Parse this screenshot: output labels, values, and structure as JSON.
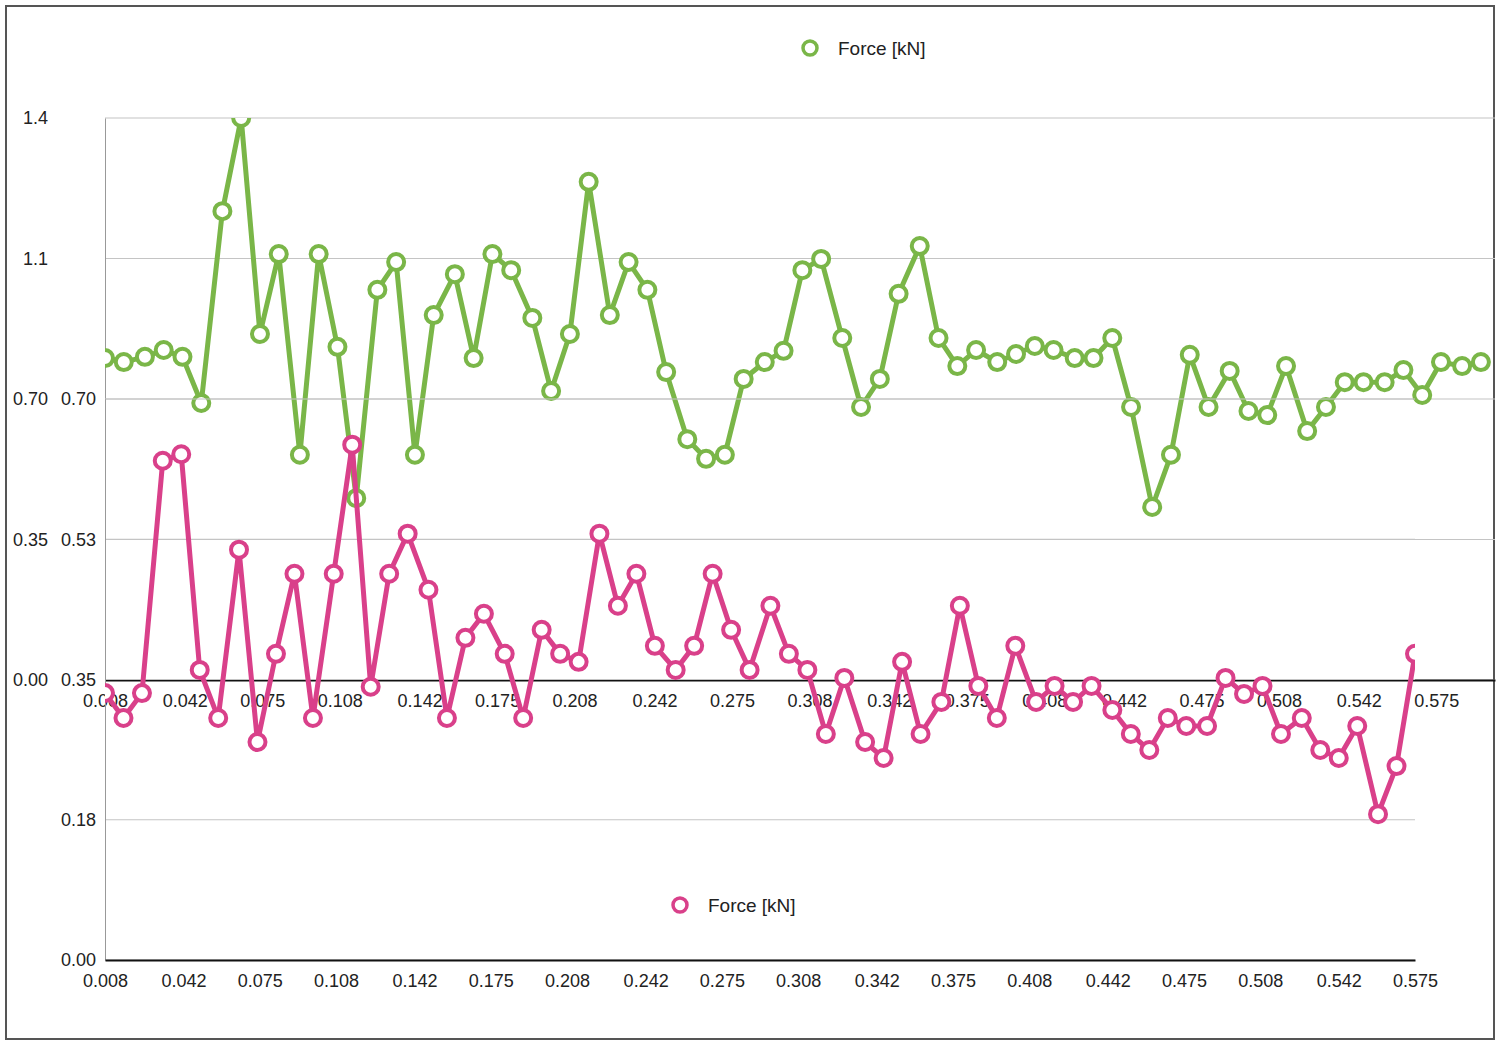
{
  "chart_data": [
    {
      "type": "line",
      "x": [
        0.008,
        0.016,
        0.025,
        0.033,
        0.041,
        0.049,
        0.058,
        0.066,
        0.074,
        0.082,
        0.091,
        0.099,
        0.107,
        0.115,
        0.124,
        0.132,
        0.14,
        0.148,
        0.157,
        0.165,
        0.173,
        0.181,
        0.19,
        0.198,
        0.206,
        0.214,
        0.223,
        0.231,
        0.239,
        0.247,
        0.256,
        0.264,
        0.272,
        0.28,
        0.289,
        0.297,
        0.305,
        0.313,
        0.322,
        0.33,
        0.338,
        0.346,
        0.355,
        0.363,
        0.371,
        0.379,
        0.388,
        0.396,
        0.404,
        0.412,
        0.421,
        0.429,
        0.437,
        0.445,
        0.454,
        0.462,
        0.47,
        0.478,
        0.487,
        0.495,
        0.503,
        0.511,
        0.52,
        0.528,
        0.536,
        0.544,
        0.553,
        0.561,
        0.569,
        0.577,
        0.586,
        0.594
      ],
      "series": [
        {
          "name": "Force [kN]",
          "color": "#7ab648",
          "values": [
            0.802,
            0.792,
            0.805,
            0.822,
            0.805,
            0.69,
            1.168,
            1.4,
            0.862,
            1.061,
            0.561,
            1.061,
            0.83,
            0.453,
            0.972,
            1.041,
            0.561,
            0.909,
            1.011,
            0.802,
            1.061,
            1.021,
            0.902,
            0.72,
            0.862,
            1.241,
            0.909,
            1.041,
            0.972,
            0.767,
            0.6,
            0.551,
            0.561,
            0.75,
            0.792,
            0.82,
            1.021,
            1.049,
            0.852,
            0.68,
            0.75,
            0.962,
            1.081,
            0.852,
            0.782,
            0.822,
            0.792,
            0.812,
            0.832,
            0.822,
            0.802,
            0.802,
            0.852,
            0.68,
            0.431,
            0.561,
            0.81,
            0.68,
            0.77,
            0.67,
            0.66,
            0.782,
            0.62,
            0.68,
            0.742,
            0.742,
            0.742,
            0.772,
            0.71,
            0.792,
            0.782,
            0.792
          ]
        }
      ],
      "xlim": [
        0.008,
        0.6
      ],
      "xticks": [
        0.008,
        0.042,
        0.075,
        0.108,
        0.142,
        0.175,
        0.208,
        0.242,
        0.275,
        0.308,
        0.342,
        0.375,
        0.408,
        0.442,
        0.475,
        0.508,
        0.542,
        0.575
      ],
      "ylim": [
        0,
        1.4
      ],
      "yticks": [
        {
          "value": 0,
          "label": "0.00"
        },
        0.35,
        {
          "value": 0.7,
          "label": "0.70"
        },
        {
          "value": 1.05,
          "label": "1.1"
        },
        1.4
      ],
      "grid": true,
      "legend": "top",
      "marker": "circle"
    },
    {
      "type": "line",
      "x": [
        0.008,
        0.016,
        0.024,
        0.033,
        0.041,
        0.049,
        0.057,
        0.066,
        0.074,
        0.082,
        0.09,
        0.098,
        0.107,
        0.115,
        0.123,
        0.131,
        0.139,
        0.148,
        0.156,
        0.164,
        0.172,
        0.181,
        0.189,
        0.197,
        0.205,
        0.213,
        0.222,
        0.23,
        0.238,
        0.246,
        0.255,
        0.263,
        0.271,
        0.279,
        0.287,
        0.296,
        0.304,
        0.312,
        0.32,
        0.328,
        0.337,
        0.345,
        0.353,
        0.361,
        0.37,
        0.378,
        0.386,
        0.394,
        0.402,
        0.411,
        0.419,
        0.427,
        0.435,
        0.444,
        0.452,
        0.46,
        0.468,
        0.476,
        0.485,
        0.493,
        0.501,
        0.509,
        0.517,
        0.526,
        0.534,
        0.542,
        0.55,
        0.559,
        0.567,
        0.575
      ],
      "series": [
        {
          "name": "Force [kN]",
          "color": "#d9408a",
          "values": [
            0.333,
            0.302,
            0.333,
            0.623,
            0.631,
            0.362,
            0.302,
            0.512,
            0.272,
            0.382,
            0.482,
            0.302,
            0.482,
            0.643,
            0.341,
            0.482,
            0.532,
            0.462,
            0.302,
            0.402,
            0.432,
            0.382,
            0.302,
            0.412,
            0.382,
            0.372,
            0.532,
            0.442,
            0.482,
            0.392,
            0.362,
            0.392,
            0.482,
            0.412,
            0.362,
            0.442,
            0.382,
            0.362,
            0.282,
            0.352,
            0.272,
            0.252,
            0.372,
            0.282,
            0.322,
            0.442,
            0.342,
            0.302,
            0.392,
            0.322,
            0.342,
            0.322,
            0.342,
            0.312,
            0.282,
            0.262,
            0.302,
            0.292,
            0.292,
            0.352,
            0.332,
            0.342,
            0.282,
            0.302,
            0.262,
            0.252,
            0.292,
            0.182,
            0.242,
            0.382
          ]
        }
      ],
      "xlim": [
        0.008,
        0.575
      ],
      "xticks": [
        0.008,
        0.042,
        0.075,
        0.108,
        0.142,
        0.175,
        0.208,
        0.242,
        0.275,
        0.308,
        0.342,
        0.375,
        0.408,
        0.442,
        0.475,
        0.508,
        0.542,
        0.575
      ],
      "ylim": [
        0,
        0.7
      ],
      "yticks": [
        {
          "value": 0,
          "label": "0.00"
        },
        {
          "value": 0.175,
          "label": "0.18"
        },
        0.35,
        {
          "value": 0.525,
          "label": "0.53"
        },
        {
          "value": 0.7,
          "label": "0.70"
        }
      ],
      "grid": true,
      "legend": "bottom",
      "marker": "circle"
    }
  ]
}
